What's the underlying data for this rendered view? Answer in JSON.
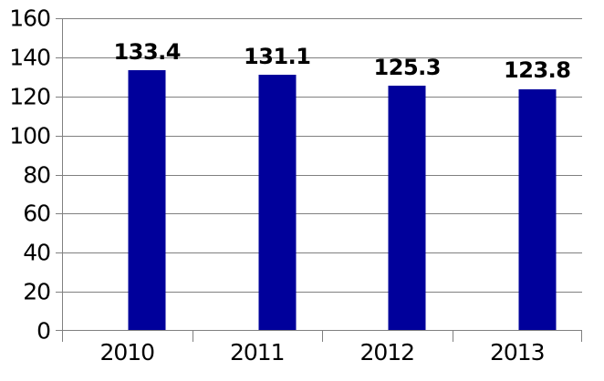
{
  "chart_data": {
    "type": "bar",
    "title": "",
    "xlabel": "",
    "ylabel": "",
    "categories": [
      "2010",
      "2011",
      "2012",
      "2013"
    ],
    "values": [
      133.4,
      131.1,
      125.3,
      123.8
    ],
    "value_labels": [
      "133.4",
      "131.1",
      "125.3",
      "123.8"
    ],
    "ylim": [
      0,
      160
    ],
    "y_ticks": [
      0,
      20,
      40,
      60,
      80,
      100,
      120,
      140,
      160
    ],
    "grid": true,
    "legend": false,
    "bar_color": "#00009B",
    "grid_color": "#808080",
    "axis_color": "#808080",
    "label_color": "#000000",
    "background": "#FFFFFF"
  }
}
